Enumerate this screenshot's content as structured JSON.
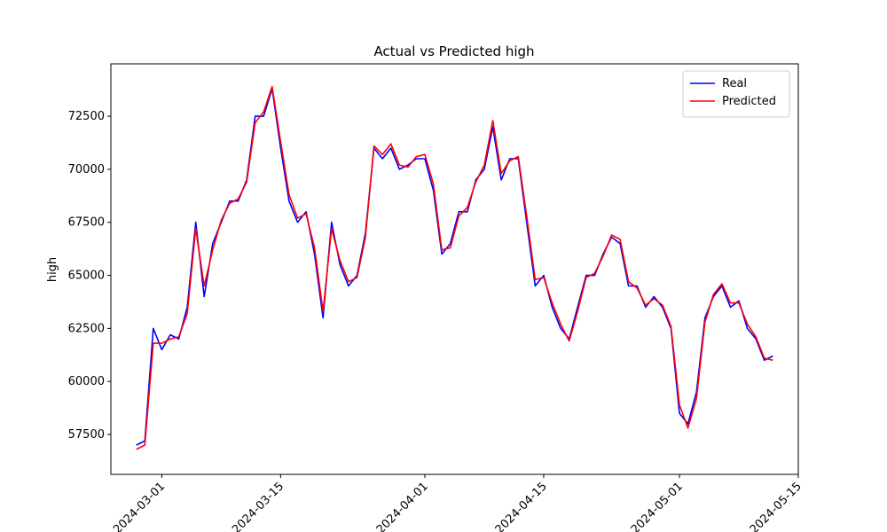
{
  "chart_data": {
    "type": "line",
    "title": "Actual vs Predicted high",
    "y_label": "high",
    "x": [
      "2024-02-27",
      "2024-02-28",
      "2024-02-29",
      "2024-03-01",
      "2024-03-02",
      "2024-03-03",
      "2024-03-04",
      "2024-03-05",
      "2024-03-06",
      "2024-03-07",
      "2024-03-08",
      "2024-03-09",
      "2024-03-10",
      "2024-03-11",
      "2024-03-12",
      "2024-03-13",
      "2024-03-14",
      "2024-03-15",
      "2024-03-16",
      "2024-03-17",
      "2024-03-18",
      "2024-03-19",
      "2024-03-20",
      "2024-03-21",
      "2024-03-22",
      "2024-03-23",
      "2024-03-24",
      "2024-03-25",
      "2024-03-26",
      "2024-03-27",
      "2024-03-28",
      "2024-03-29",
      "2024-03-30",
      "2024-03-31",
      "2024-04-01",
      "2024-04-02",
      "2024-04-03",
      "2024-04-04",
      "2024-04-05",
      "2024-04-06",
      "2024-04-07",
      "2024-04-08",
      "2024-04-09",
      "2024-04-10",
      "2024-04-11",
      "2024-04-12",
      "2024-04-13",
      "2024-04-14",
      "2024-04-15",
      "2024-04-16",
      "2024-04-17",
      "2024-04-18",
      "2024-04-19",
      "2024-04-20",
      "2024-04-21",
      "2024-04-22",
      "2024-04-23",
      "2024-04-24",
      "2024-04-25",
      "2024-04-26",
      "2024-04-27",
      "2024-04-28",
      "2024-04-29",
      "2024-04-30",
      "2024-05-01",
      "2024-05-02",
      "2024-05-03",
      "2024-05-04",
      "2024-05-05",
      "2024-05-06",
      "2024-05-07",
      "2024-05-08",
      "2024-05-09",
      "2024-05-10",
      "2024-05-11",
      "2024-05-12"
    ],
    "series": [
      {
        "name": "Real",
        "color": "#0000ff",
        "values": [
          57000,
          57200,
          62500,
          61500,
          62200,
          62000,
          63500,
          67500,
          64000,
          66500,
          67500,
          68500,
          68500,
          69500,
          72500,
          72500,
          73800,
          71000,
          68500,
          67500,
          68000,
          66000,
          63000,
          67500,
          65500,
          64500,
          65000,
          67000,
          71000,
          70500,
          71000,
          70000,
          70200,
          70500,
          70500,
          69000,
          66000,
          66500,
          68000,
          68000,
          69500,
          70000,
          72000,
          69500,
          70500,
          70500,
          67500,
          64500,
          65000,
          63500,
          62500,
          62000,
          63500,
          65000,
          65000,
          66000,
          66800,
          66500,
          64500,
          64500,
          63500,
          64000,
          63500,
          62500,
          58500,
          58000,
          59500,
          63000,
          64000,
          64500,
          63500,
          63800,
          62500,
          62000,
          61000,
          61200
        ]
      },
      {
        "name": "Predicted",
        "color": "#ff0000",
        "values": [
          56800,
          57000,
          61800,
          61800,
          62000,
          62100,
          63200,
          67200,
          64500,
          66200,
          67600,
          68400,
          68600,
          69400,
          72200,
          72700,
          73900,
          71300,
          68800,
          67700,
          67900,
          66300,
          63300,
          67200,
          65700,
          64700,
          64900,
          66800,
          71100,
          70700,
          71200,
          70200,
          70100,
          70600,
          70700,
          69300,
          66200,
          66300,
          67800,
          68200,
          69400,
          70200,
          72300,
          69800,
          70400,
          70600,
          67800,
          64800,
          64900,
          63700,
          62700,
          61900,
          63300,
          64900,
          65100,
          65900,
          66900,
          66700,
          64700,
          64400,
          63600,
          63900,
          63600,
          62600,
          58900,
          57800,
          59200,
          62800,
          64100,
          64600,
          63700,
          63700,
          62700,
          62100,
          61100,
          61000
        ]
      }
    ],
    "xlim": [
      "2024-02-24",
      "2024-05-15"
    ],
    "xticks": [
      "2024-03-01",
      "2024-03-15",
      "2024-04-01",
      "2024-04-15",
      "2024-05-01",
      "2024-05-15"
    ],
    "ylim": [
      55620,
      74970
    ],
    "yticks": [
      57500,
      60000,
      62500,
      65000,
      67500,
      70000,
      72500
    ],
    "legend": "upper right"
  }
}
